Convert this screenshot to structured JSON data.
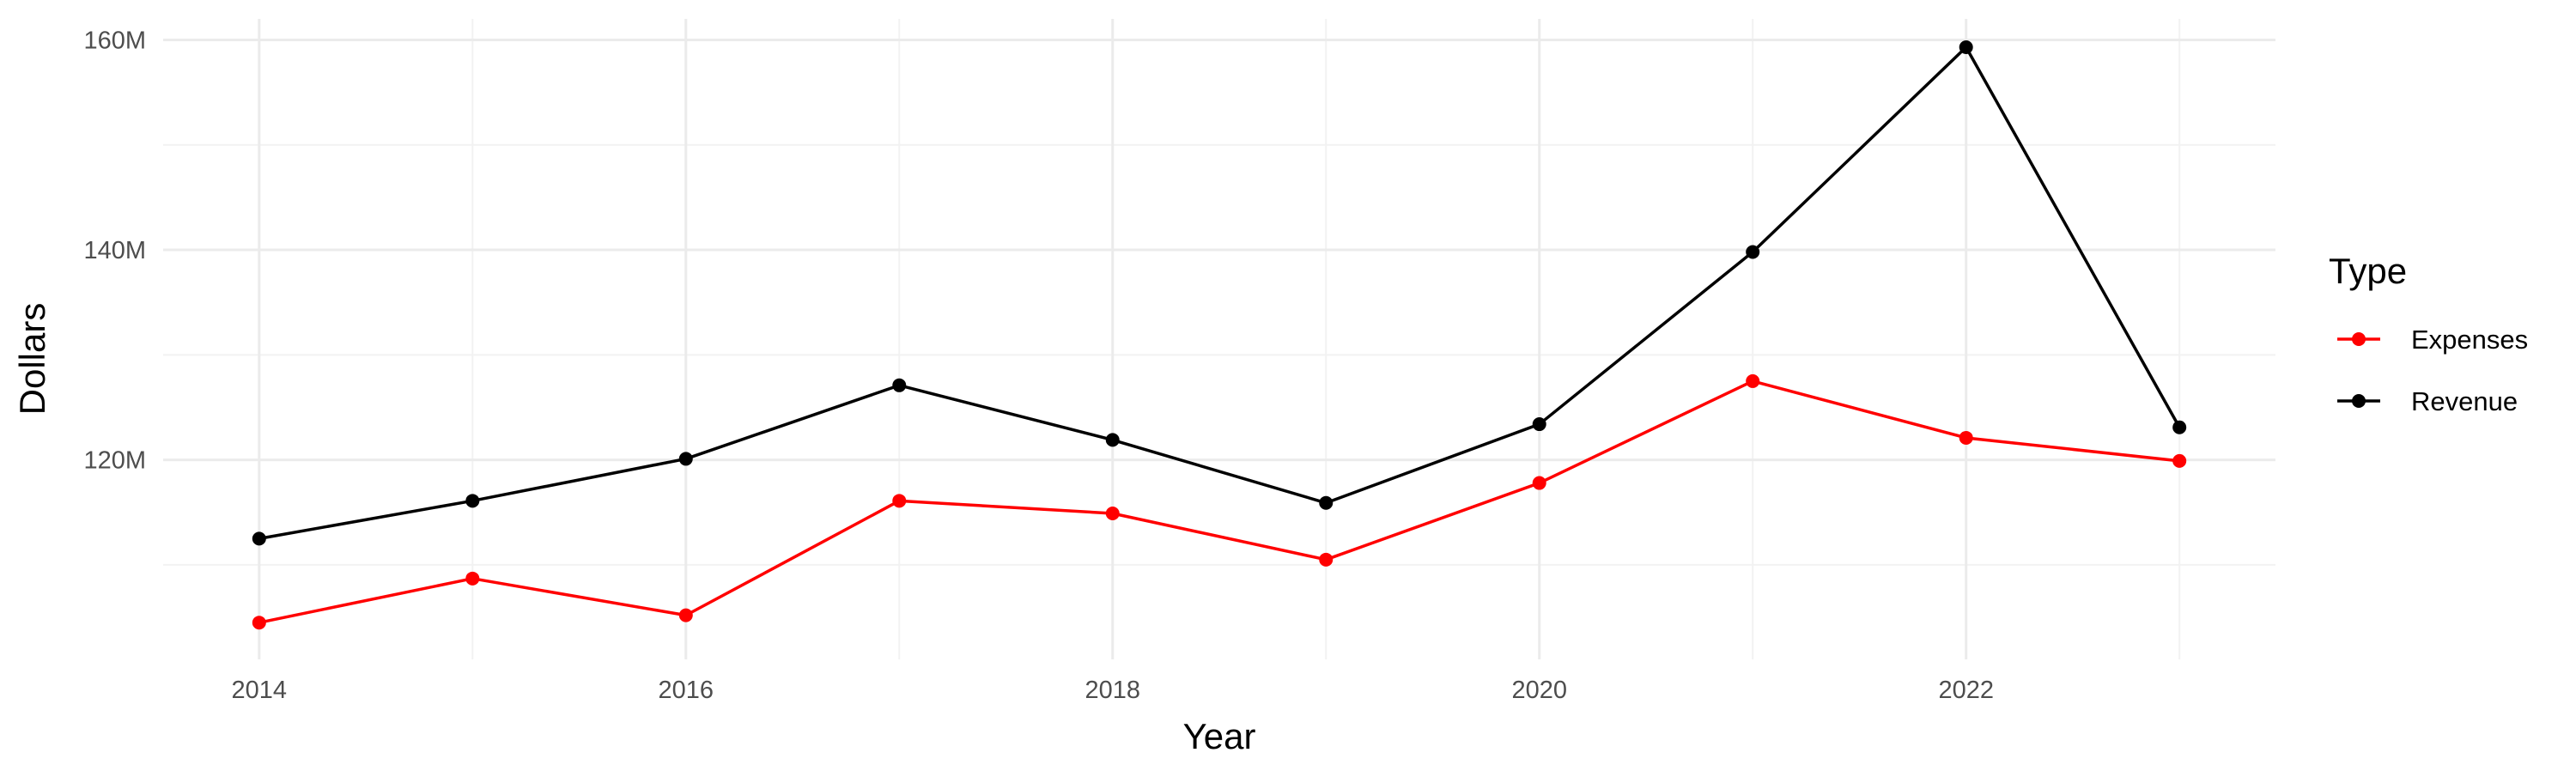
{
  "chart_data": {
    "type": "line",
    "title": "",
    "xlabel": "Year",
    "ylabel": "Dollars",
    "x": [
      2014,
      2015,
      2016,
      2017,
      2018,
      2019,
      2020,
      2021,
      2022,
      2023
    ],
    "xlim": [
      2013.55,
      2023.45
    ],
    "ylim": [
      101,
      162
    ],
    "x_ticks": [
      2014,
      2016,
      2018,
      2020,
      2022
    ],
    "x_tick_labels": [
      "2014",
      "2016",
      "2018",
      "2020",
      "2022"
    ],
    "y_ticks": [
      120,
      140,
      160
    ],
    "y_tick_labels": [
      "120M",
      "140M",
      "160M"
    ],
    "y_unit": "millions of dollars",
    "grid": true,
    "legend": {
      "title": "Type",
      "position": "right"
    },
    "series": [
      {
        "name": "Expenses",
        "color": "#ff0000",
        "values": [
          104.5,
          108.7,
          105.2,
          116.1,
          114.9,
          110.5,
          117.8,
          127.5,
          122.1,
          119.9
        ]
      },
      {
        "name": "Revenue",
        "color": "#000000",
        "values": [
          112.5,
          116.1,
          120.1,
          127.1,
          121.9,
          115.9,
          123.4,
          139.8,
          159.3,
          123.1
        ]
      }
    ]
  }
}
